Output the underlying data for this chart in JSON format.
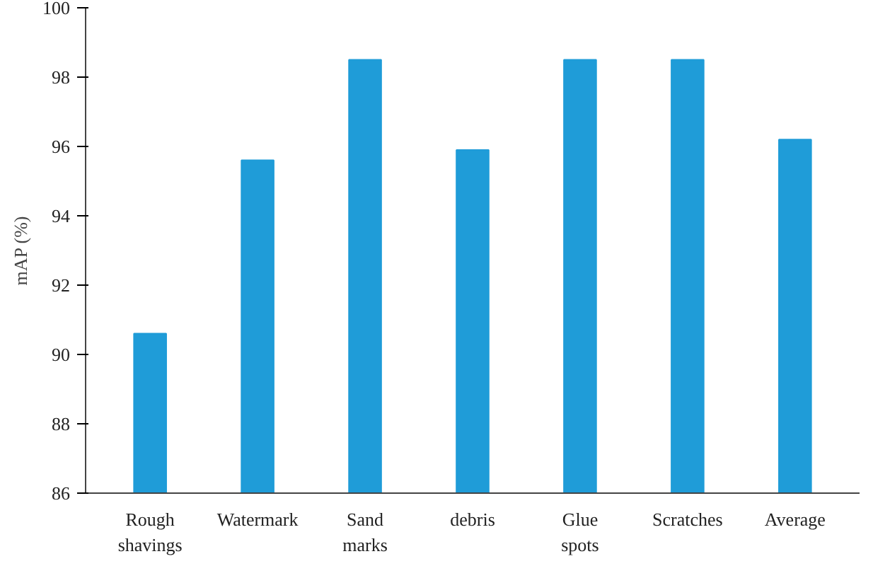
{
  "chart_data": {
    "type": "bar",
    "ylabel": "mAP (%)",
    "categories": [
      "Rough\nshavings",
      "Watermark",
      "Sand\nmarks",
      "debris",
      "Glue\nspots",
      "Scratches",
      "Average"
    ],
    "values": [
      90.6,
      95.6,
      98.5,
      95.9,
      98.5,
      98.5,
      96.2
    ],
    "color": "#1f9cd8",
    "ylim": [
      86,
      100
    ],
    "yticks": [
      86,
      88,
      90,
      92,
      94,
      96,
      98,
      100
    ],
    "grid": false
  }
}
